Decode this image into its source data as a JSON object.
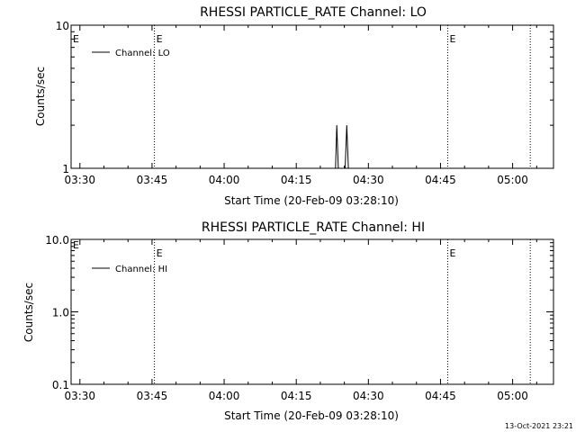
{
  "chart_data": [
    {
      "type": "line",
      "title": "RHESSI PARTICLE_RATE Channel: LO",
      "xlabel": "Start Time (20-Feb-09 03:28:10)",
      "ylabel": "Counts/sec",
      "y_scale": "log",
      "ylim": [
        1,
        10
      ],
      "y_ticks": [
        "1",
        "10"
      ],
      "x_ticks": [
        "03:30",
        "03:45",
        "04:00",
        "04:15",
        "04:30",
        "04:45",
        "05:00"
      ],
      "xlim": [
        "03:28:10",
        "05:08:30"
      ],
      "legend": {
        "label": "Channel: LO",
        "position": "top-left"
      },
      "event_lines": [
        {
          "time": "03:45:30",
          "label": "E"
        },
        {
          "time": "04:46:30",
          "label": "E"
        },
        {
          "time": "05:03:40",
          "label": ""
        }
      ],
      "left_event_label": "E",
      "series": [
        {
          "name": "Channel: LO",
          "points": [
            [
              "04:23:10",
              1
            ],
            [
              "04:23:25",
              2
            ],
            [
              "04:23:45",
              1
            ],
            [
              "04:25:10",
              1
            ],
            [
              "04:25:30",
              2
            ],
            [
              "04:25:50",
              1
            ]
          ]
        }
      ]
    },
    {
      "type": "line",
      "title": "RHESSI PARTICLE_RATE Channel: HI",
      "xlabel": "Start Time (20-Feb-09 03:28:10)",
      "ylabel": "Counts/sec",
      "y_scale": "log",
      "ylim": [
        0.1,
        10
      ],
      "y_ticks": [
        "0.1",
        "1.0",
        "10.0"
      ],
      "x_ticks": [
        "03:30",
        "03:45",
        "04:00",
        "04:15",
        "04:30",
        "04:45",
        "05:00"
      ],
      "xlim": [
        "03:28:10",
        "05:08:30"
      ],
      "legend": {
        "label": "Channel: HI",
        "position": "top-left"
      },
      "event_lines": [
        {
          "time": "03:45:30",
          "label": "E"
        },
        {
          "time": "04:46:30",
          "label": "E"
        },
        {
          "time": "05:03:40",
          "label": ""
        }
      ],
      "left_event_label": "E",
      "series": [
        {
          "name": "Channel: HI",
          "points": []
        }
      ]
    }
  ],
  "footer": {
    "timestamp": "13-Oct-2021 23:21"
  }
}
